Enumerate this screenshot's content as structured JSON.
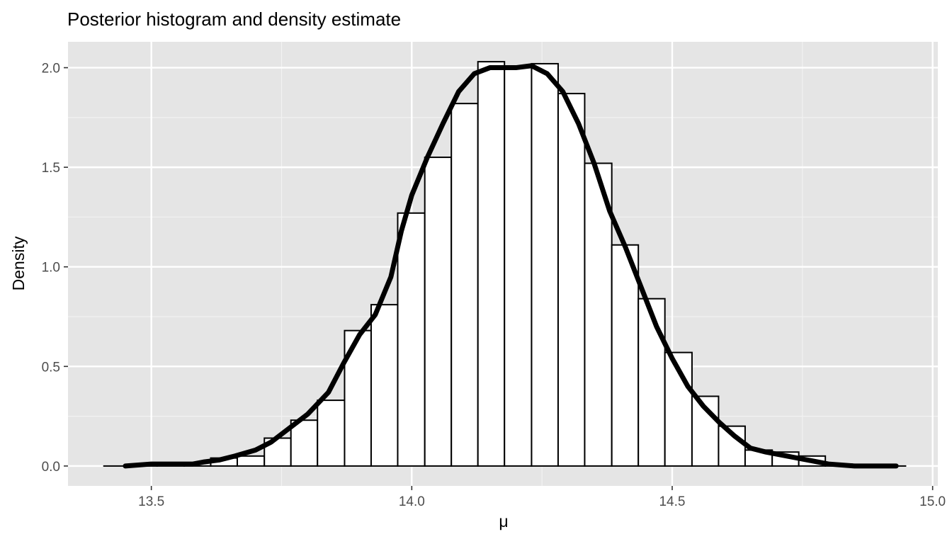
{
  "chart_data": {
    "type": "bar",
    "title": "Posterior histogram and density estimate",
    "xlabel": "μ",
    "ylabel": "Density",
    "xlim": [
      13.34,
      15.01
    ],
    "ylim": [
      -0.1,
      2.13
    ],
    "x_ticks": [
      13.5,
      14.0,
      14.5,
      15.0
    ],
    "x_tick_labels": [
      "13.5",
      "14.0",
      "14.5",
      "15.0"
    ],
    "y_ticks": [
      0.0,
      0.5,
      1.0,
      1.5,
      2.0
    ],
    "y_tick_labels": [
      "0.0",
      "0.5",
      "1.0",
      "1.5",
      "2.0"
    ],
    "grid": true,
    "legend": "none",
    "histogram": {
      "bin_width": 0.0513,
      "bins": [
        {
          "x0": 13.409,
          "x1": 13.46,
          "density": 0.0
        },
        {
          "x0": 13.46,
          "x1": 13.511,
          "density": 0.0
        },
        {
          "x0": 13.511,
          "x1": 13.563,
          "density": 0.0
        },
        {
          "x0": 13.563,
          "x1": 13.614,
          "density": 0.0
        },
        {
          "x0": 13.614,
          "x1": 13.665,
          "density": 0.04
        },
        {
          "x0": 13.665,
          "x1": 13.717,
          "density": 0.05
        },
        {
          "x0": 13.717,
          "x1": 13.768,
          "density": 0.14
        },
        {
          "x0": 13.768,
          "x1": 13.819,
          "density": 0.23
        },
        {
          "x0": 13.819,
          "x1": 13.871,
          "density": 0.33
        },
        {
          "x0": 13.871,
          "x1": 13.922,
          "density": 0.68
        },
        {
          "x0": 13.922,
          "x1": 13.973,
          "density": 0.81
        },
        {
          "x0": 13.973,
          "x1": 14.025,
          "density": 1.27
        },
        {
          "x0": 14.025,
          "x1": 14.076,
          "density": 1.55
        },
        {
          "x0": 14.076,
          "x1": 14.127,
          "density": 1.82
        },
        {
          "x0": 14.127,
          "x1": 14.178,
          "density": 2.03
        },
        {
          "x0": 14.178,
          "x1": 14.23,
          "density": 2.0
        },
        {
          "x0": 14.23,
          "x1": 14.281,
          "density": 2.02
        },
        {
          "x0": 14.281,
          "x1": 14.332,
          "density": 1.87
        },
        {
          "x0": 14.332,
          "x1": 14.384,
          "density": 1.52
        },
        {
          "x0": 14.384,
          "x1": 14.435,
          "density": 1.11
        },
        {
          "x0": 14.435,
          "x1": 14.486,
          "density": 0.84
        },
        {
          "x0": 14.486,
          "x1": 14.538,
          "density": 0.57
        },
        {
          "x0": 14.538,
          "x1": 14.589,
          "density": 0.35
        },
        {
          "x0": 14.589,
          "x1": 14.64,
          "density": 0.2
        },
        {
          "x0": 14.64,
          "x1": 14.692,
          "density": 0.08
        },
        {
          "x0": 14.692,
          "x1": 14.743,
          "density": 0.07
        },
        {
          "x0": 14.743,
          "x1": 14.794,
          "density": 0.05
        },
        {
          "x0": 14.794,
          "x1": 14.845,
          "density": 0.01
        },
        {
          "x0": 14.845,
          "x1": 14.897,
          "density": 0.0
        },
        {
          "x0": 14.897,
          "x1": 14.948,
          "density": 0.0
        }
      ]
    },
    "density_curve": {
      "x": [
        13.45,
        13.5,
        13.55,
        13.58,
        13.6,
        13.63,
        13.66,
        13.7,
        13.73,
        13.76,
        13.8,
        13.84,
        13.87,
        13.9,
        13.93,
        13.96,
        13.98,
        14.0,
        14.03,
        14.06,
        14.09,
        14.12,
        14.15,
        14.18,
        14.2,
        14.23,
        14.26,
        14.29,
        14.32,
        14.35,
        14.38,
        14.41,
        14.44,
        14.47,
        14.5,
        14.53,
        14.56,
        14.59,
        14.62,
        14.65,
        14.68,
        14.72,
        14.76,
        14.8,
        14.85,
        14.9,
        14.93
      ],
      "y": [
        0.0,
        0.01,
        0.01,
        0.01,
        0.02,
        0.03,
        0.05,
        0.08,
        0.12,
        0.18,
        0.26,
        0.37,
        0.52,
        0.66,
        0.76,
        0.95,
        1.18,
        1.36,
        1.55,
        1.72,
        1.88,
        1.97,
        2.0,
        2.0,
        2.0,
        2.01,
        1.97,
        1.88,
        1.72,
        1.52,
        1.28,
        1.1,
        0.9,
        0.7,
        0.54,
        0.4,
        0.3,
        0.22,
        0.15,
        0.09,
        0.07,
        0.05,
        0.03,
        0.01,
        0.0,
        0.0,
        0.0
      ]
    }
  }
}
